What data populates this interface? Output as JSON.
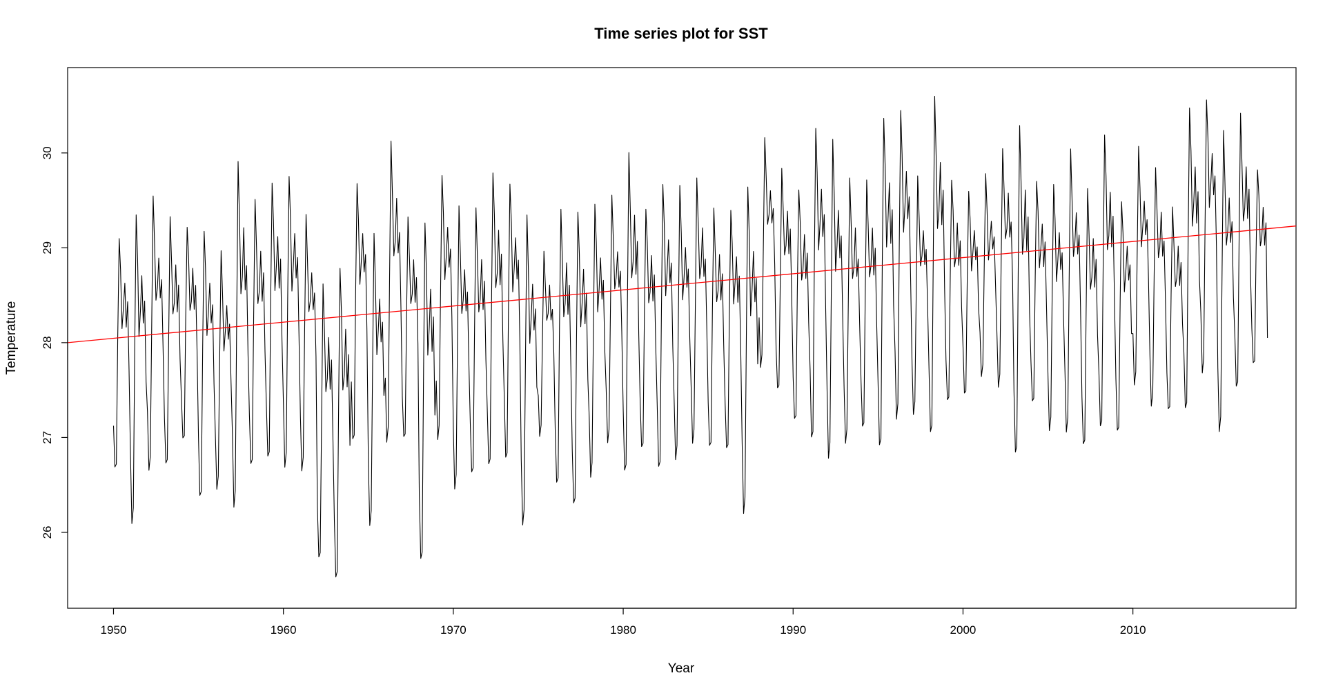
{
  "chart_data": {
    "type": "line",
    "title": "Time series plot for SST",
    "xlabel": "Year",
    "ylabel": "Temperature",
    "xlim": [
      1947.3,
      2019.6
    ],
    "ylim": [
      25.2,
      30.9
    ],
    "x_ticks": [
      1950,
      1960,
      1970,
      1980,
      1990,
      2000,
      2010
    ],
    "y_ticks": [
      26,
      27,
      28,
      29,
      30
    ],
    "grid": false,
    "legend": "none",
    "colors": {
      "series": "#000000",
      "trend": "#ff0000"
    },
    "series": [
      {
        "frequency": "monthly",
        "start": 1950.0,
        "annual_min": [
          26.6,
          26.0,
          26.6,
          26.6,
          26.9,
          26.3,
          26.4,
          26.2,
          26.6,
          26.7,
          26.6,
          26.6,
          25.6,
          25.4,
          26.9,
          26.0,
          26.9,
          26.9,
          25.6,
          26.9,
          26.4,
          26.5,
          26.6,
          26.7,
          26.0,
          27.0,
          26.4,
          26.2,
          26.5,
          26.9,
          26.5,
          26.8,
          26.6,
          26.7,
          26.9,
          26.8,
          26.8,
          26.1,
          27.7,
          27.4,
          27.1,
          26.9,
          26.7,
          26.9,
          27.0,
          26.8,
          27.1,
          27.2,
          26.9,
          27.3,
          27.4,
          27.6,
          27.5,
          26.7,
          27.3,
          27.0,
          27.0,
          26.8,
          27.0,
          27.0,
          27.5,
          27.3,
          27.2,
          27.2,
          27.6,
          27.0,
          27.4,
          27.7
        ],
        "annual_max": [
          29.2,
          29.5,
          29.6,
          29.4,
          29.3,
          29.3,
          29.0,
          30.0,
          29.6,
          29.8,
          29.9,
          29.4,
          28.7,
          28.9,
          29.8,
          29.2,
          30.2,
          29.4,
          29.4,
          29.9,
          29.5,
          29.5,
          29.9,
          29.8,
          29.4,
          29.0,
          29.5,
          29.5,
          29.6,
          29.6,
          30.1,
          29.5,
          29.8,
          29.7,
          29.8,
          29.5,
          29.5,
          29.8,
          30.2,
          29.9,
          29.7,
          30.4,
          30.2,
          29.8,
          29.8,
          30.5,
          30.6,
          29.8,
          30.7,
          29.8,
          29.7,
          29.8,
          30.1,
          30.4,
          29.8,
          29.8,
          30.1,
          29.7,
          30.3,
          29.6,
          30.1,
          29.9,
          29.5,
          30.6,
          30.7,
          30.3,
          30.5,
          29.9
        ],
        "end_value": 28.05
      }
    ],
    "trend": {
      "type": "linear",
      "from": [
        1947.3,
        28.0
      ],
      "to": [
        2019.6,
        29.23
      ]
    }
  }
}
